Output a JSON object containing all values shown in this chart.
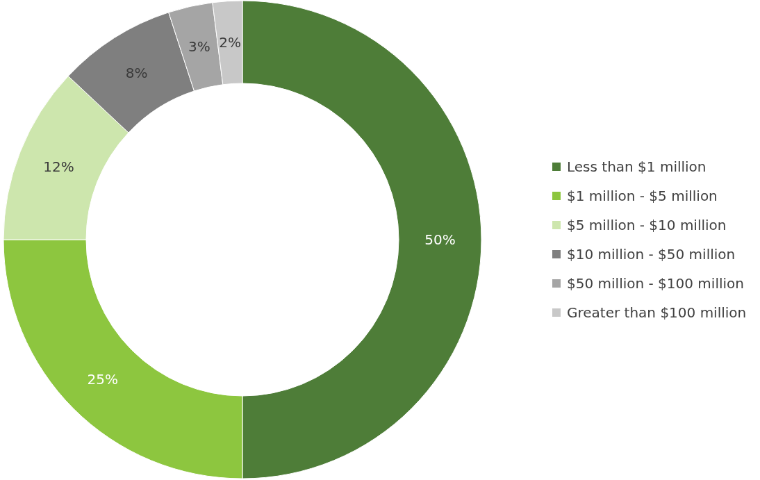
{
  "chart_data": {
    "type": "donut",
    "categories": [
      "Less than $1 million",
      "$1 million - $5 million",
      "$5 million - $10 million",
      "$10 million - $50 million",
      "$50 million - $100 million",
      "Greater than $100 million"
    ],
    "values": [
      50,
      25,
      12,
      8,
      3,
      2
    ],
    "colors": [
      "#4e7d38",
      "#8dc63f",
      "#cde6ad",
      "#7f7f7f",
      "#a5a5a5",
      "#c8c8c8"
    ],
    "value_labels": [
      "50%",
      "25%",
      "12%",
      "8%",
      "3%",
      "2%"
    ],
    "legend": "right"
  }
}
